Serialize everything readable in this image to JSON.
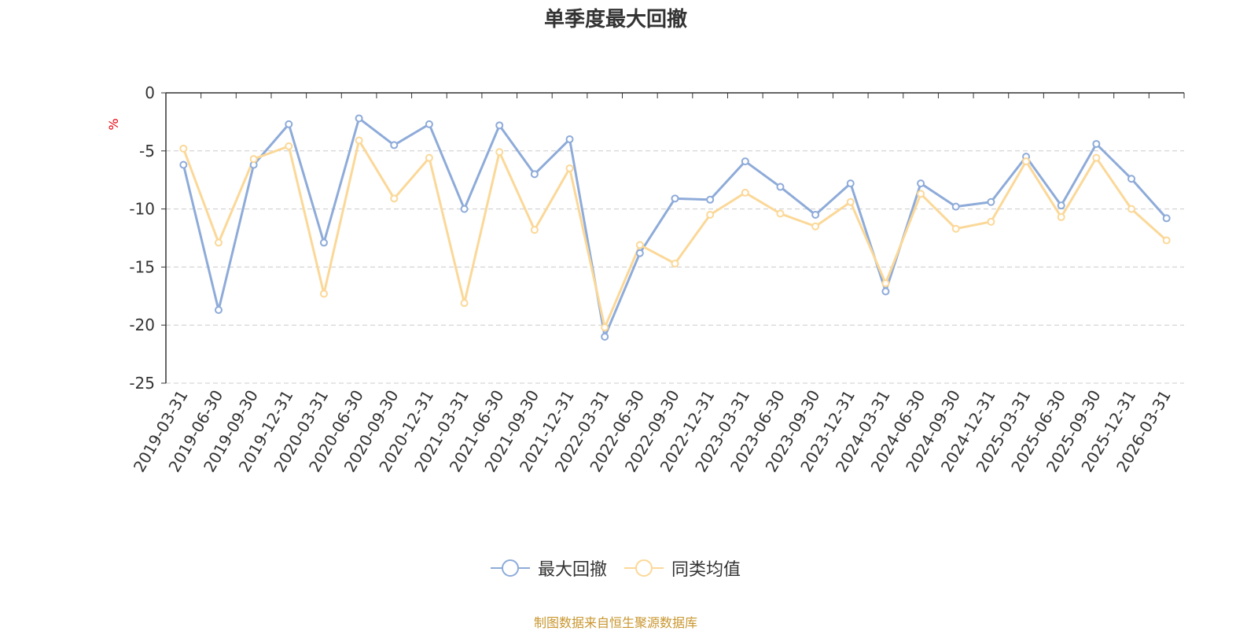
{
  "chart_data": {
    "type": "line",
    "title": "单季度最大回撤",
    "ylabel": "%",
    "ylim": [
      -25,
      0
    ],
    "yticks": [
      0,
      -5,
      -10,
      -15,
      -20,
      -25
    ],
    "grid": true,
    "legend_position": "bottom",
    "categories": [
      "2019-03-31",
      "2019-06-30",
      "2019-09-30",
      "2019-12-31",
      "2020-03-31",
      "2020-06-30",
      "2020-09-30",
      "2020-12-31",
      "2021-03-31",
      "2021-06-30",
      "2021-09-30",
      "2021-12-31",
      "2022-03-31",
      "2022-06-30",
      "2022-09-30",
      "2022-12-31",
      "2023-03-31",
      "2023-06-30",
      "2023-09-30",
      "2023-12-31",
      "2024-03-31",
      "2024-06-30",
      "2024-09-30",
      "2024-12-31",
      "2025-03-31",
      "2025-06-30",
      "2025-09-30",
      "2025-12-31",
      "2026-03-31"
    ],
    "series": [
      {
        "name": "最大回撤",
        "color": "#8eabd9",
        "values": [
          -6.2,
          -18.7,
          -6.2,
          -2.7,
          -12.9,
          -2.2,
          -4.5,
          -2.7,
          -10.0,
          -2.8,
          -7.0,
          -4.0,
          -21.0,
          -13.8,
          -9.1,
          -9.2,
          -5.9,
          -8.1,
          -10.5,
          -7.8,
          -17.1,
          -7.8,
          -9.8,
          -9.4,
          -5.5,
          -9.7,
          -4.4,
          -7.4,
          -10.8
        ]
      },
      {
        "name": "同类均值",
        "color": "#fbd898",
        "values": [
          -4.8,
          -12.9,
          -5.7,
          -4.6,
          -17.3,
          -4.1,
          -9.1,
          -5.6,
          -18.1,
          -5.1,
          -11.8,
          -6.5,
          -20.2,
          -13.1,
          -14.7,
          -10.5,
          -8.6,
          -10.4,
          -11.5,
          -9.4,
          -16.4,
          -8.7,
          -11.7,
          -11.1,
          -5.9,
          -10.7,
          -5.6,
          -10.0,
          -12.7
        ]
      }
    ]
  },
  "source_note": "制图数据来自恒生聚源数据库"
}
